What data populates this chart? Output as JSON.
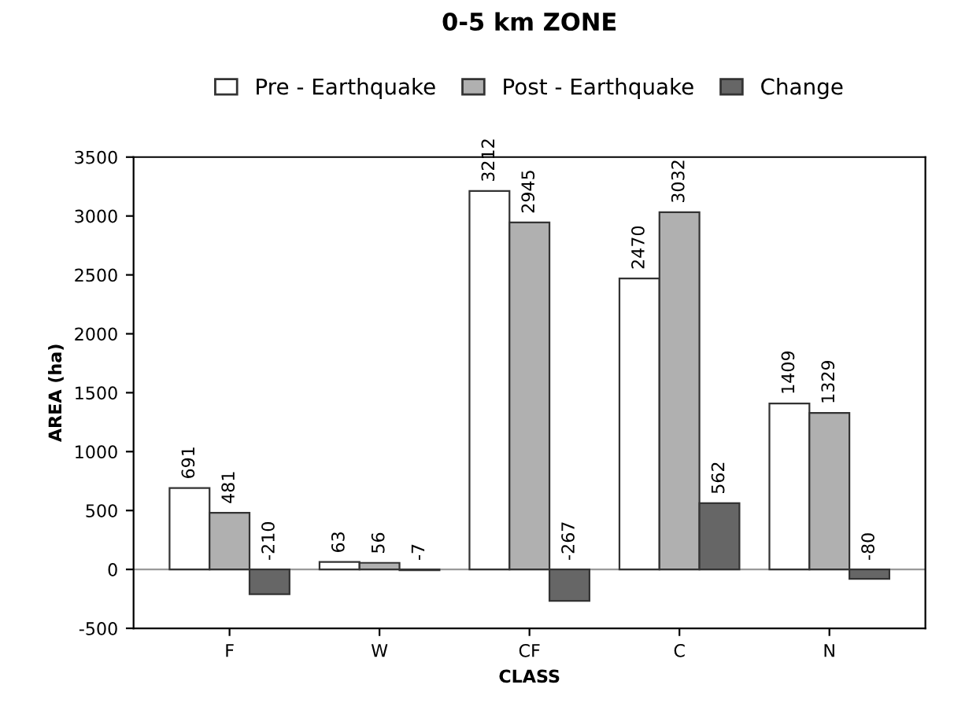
{
  "chart_data": {
    "type": "bar",
    "title": "0-5 km ZONE",
    "xlabel": "CLASS",
    "ylabel": "AREA (ha)",
    "categories": [
      "F",
      "W",
      "CF",
      "C",
      "N"
    ],
    "series": [
      {
        "name": "Pre - Earthquake",
        "color": "#ffffff",
        "values": [
          691,
          63,
          3212,
          2470,
          1409
        ]
      },
      {
        "name": "Post - Earthquake",
        "color": "#b0b0b0",
        "values": [
          481,
          56,
          2945,
          3032,
          1329
        ]
      },
      {
        "name": "Change",
        "color": "#666666",
        "values": [
          -210,
          -7,
          -267,
          562,
          -80
        ]
      }
    ],
    "ylim": [
      -500,
      3500
    ],
    "yticks": [
      -500,
      0,
      500,
      1000,
      1500,
      2000,
      2500,
      3000,
      3500
    ],
    "ref_lines": [
      {
        "axis": "y",
        "value": 0,
        "color": "#999999"
      }
    ],
    "data_labels": true,
    "legend": "top",
    "grid": false
  }
}
